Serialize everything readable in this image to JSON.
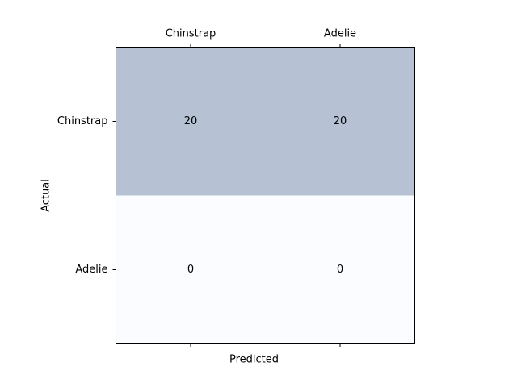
{
  "chart_data": {
    "type": "heatmap",
    "title": "",
    "x_categories": [
      "Chinstrap",
      "Adelie"
    ],
    "y_categories": [
      "Chinstrap",
      "Adelie"
    ],
    "values": [
      [
        20,
        20
      ],
      [
        0,
        0
      ]
    ],
    "xlabel": "Predicted",
    "ylabel": "Actual",
    "x_tick_position": "top",
    "colors": {
      "high": "#b6c2d3",
      "low": "#fafcff",
      "frame": "#000000"
    }
  }
}
